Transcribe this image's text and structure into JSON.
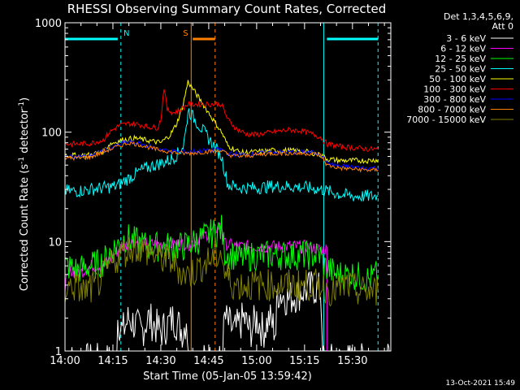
{
  "chart_data": {
    "type": "line",
    "title": "RHESSI Observing Summary Count Rates, Corrected",
    "xlabel": "Start Time (05-Jan-05 13:59:42)",
    "ylabel": "Corrected Count Rate (s⁻¹ detector⁻¹)",
    "ylabel_parts": [
      "Corrected Count Rate (s",
      "-1",
      " detector",
      "-1",
      ")"
    ],
    "y_scale": "log",
    "ylim": [
      1,
      1000
    ],
    "y_ticks": [
      {
        "v": 1,
        "label": "1"
      },
      {
        "v": 10,
        "label": "10"
      },
      {
        "v": 100,
        "label": "100"
      },
      {
        "v": 1000,
        "label": "1000"
      }
    ],
    "x_ticks": [
      "14:00",
      "14:15",
      "14:30",
      "14:45",
      "15:00",
      "15:15",
      "15:30"
    ],
    "x_tick_minutes": [
      0,
      15,
      30,
      45,
      60,
      75,
      90
    ],
    "x_range_minutes": [
      0,
      102
    ],
    "legend": {
      "header": [
        "Det 1,3,4,5,6,9,",
        "Att 0"
      ],
      "placement": "top-right outside"
    },
    "footer_date": "13-Oct-2021 15:49",
    "markers": [
      {
        "label": "N",
        "color": "#00ffff",
        "bar": [
          0,
          16.5
        ],
        "bar2": [
          82,
          98
        ],
        "lines": [
          0,
          17.5,
          81,
          98
        ]
      },
      {
        "label": "S",
        "color": "#ff8000",
        "bar": [
          40,
          47
        ],
        "lines": [
          39.5,
          47
        ]
      }
    ],
    "series": [
      {
        "name": "3 - 6 keV",
        "color": "#ffffff",
        "points": [
          [
            0,
            0.8
          ],
          [
            16,
            0.8
          ],
          [
            16.5,
            2
          ],
          [
            18,
            1.5
          ],
          [
            20,
            2
          ],
          [
            24,
            1.5
          ],
          [
            26,
            2
          ],
          [
            30,
            1.5
          ],
          [
            34,
            2
          ],
          [
            37,
            1.5
          ],
          [
            38,
            2
          ],
          [
            39,
            0.8
          ],
          [
            49,
            0.8
          ],
          [
            50,
            2
          ],
          [
            53,
            1.5
          ],
          [
            56,
            2
          ],
          [
            58,
            1.5
          ],
          [
            60,
            2
          ],
          [
            62,
            1.5
          ],
          [
            64,
            2
          ],
          [
            66,
            1.5
          ],
          [
            66.5,
            3.5
          ],
          [
            70,
            3
          ],
          [
            74,
            3.5
          ],
          [
            78,
            3.8
          ],
          [
            80,
            3.5
          ],
          [
            81,
            0.8
          ],
          [
            102,
            0.8
          ]
        ]
      },
      {
        "name": "6 - 12 keV",
        "color": "#ff00ff",
        "points": [
          [
            0,
            4
          ],
          [
            2,
            5.5
          ],
          [
            4,
            5
          ],
          [
            8,
            6
          ],
          [
            12,
            6
          ],
          [
            14,
            7
          ],
          [
            16,
            8
          ],
          [
            18,
            9
          ],
          [
            22,
            10
          ],
          [
            26,
            9.5
          ],
          [
            30,
            9.5
          ],
          [
            36,
            9.5
          ],
          [
            39,
            9.5
          ],
          [
            49,
            14
          ],
          [
            50,
            9.5
          ],
          [
            55,
            9
          ],
          [
            62,
            9
          ],
          [
            70,
            9
          ],
          [
            76,
            9
          ],
          [
            80,
            8.5
          ],
          [
            82,
            8.5
          ],
          [
            82,
            0.8
          ],
          [
            102,
            0.8
          ]
        ]
      },
      {
        "name": "12 - 25 keV",
        "color": "#00ff00",
        "points": [
          [
            0,
            6
          ],
          [
            4,
            5.5
          ],
          [
            8,
            6
          ],
          [
            12,
            6.5
          ],
          [
            14,
            8
          ],
          [
            16,
            9
          ],
          [
            19,
            11
          ],
          [
            22,
            10
          ],
          [
            26,
            9
          ],
          [
            30,
            9
          ],
          [
            34,
            9
          ],
          [
            37,
            9
          ],
          [
            39,
            9.5
          ],
          [
            49,
            13
          ],
          [
            50,
            8
          ],
          [
            55,
            7
          ],
          [
            60,
            7.5
          ],
          [
            70,
            7.5
          ],
          [
            76,
            7.5
          ],
          [
            80,
            7.5
          ],
          [
            81,
            6
          ],
          [
            85,
            5
          ],
          [
            90,
            5
          ],
          [
            95,
            4.5
          ],
          [
            98,
            5
          ]
        ]
      },
      {
        "name": "25 - 50 keV",
        "color": "#00ffff",
        "points": [
          [
            0,
            29
          ],
          [
            4,
            29
          ],
          [
            8,
            30
          ],
          [
            12,
            31
          ],
          [
            16,
            32
          ],
          [
            20,
            38
          ],
          [
            24,
            45
          ],
          [
            28,
            50
          ],
          [
            30,
            52
          ],
          [
            33,
            56
          ],
          [
            35,
            62
          ],
          [
            37,
            75
          ],
          [
            38,
            110
          ],
          [
            38.5,
            160
          ],
          [
            49,
            60
          ],
          [
            51,
            33
          ],
          [
            55,
            31
          ],
          [
            60,
            31
          ],
          [
            65,
            32
          ],
          [
            70,
            32
          ],
          [
            76,
            31
          ],
          [
            80,
            30
          ],
          [
            82,
            29
          ],
          [
            86,
            27
          ],
          [
            90,
            26
          ],
          [
            95,
            26
          ],
          [
            98,
            26
          ]
        ]
      },
      {
        "name": "50 - 100 keV",
        "color": "#ffff00",
        "points": [
          [
            0,
            62
          ],
          [
            4,
            61
          ],
          [
            8,
            62
          ],
          [
            12,
            67
          ],
          [
            14,
            78
          ],
          [
            18,
            85
          ],
          [
            22,
            88
          ],
          [
            26,
            84
          ],
          [
            30,
            80
          ],
          [
            33,
            95
          ],
          [
            35,
            120
          ],
          [
            37,
            180
          ],
          [
            38.5,
            290
          ],
          [
            49,
            100
          ],
          [
            51,
            75
          ],
          [
            55,
            65
          ],
          [
            60,
            66
          ],
          [
            65,
            68
          ],
          [
            70,
            68
          ],
          [
            76,
            66
          ],
          [
            80,
            62
          ],
          [
            82,
            57
          ],
          [
            86,
            55
          ],
          [
            90,
            55
          ],
          [
            95,
            55
          ],
          [
            98,
            56
          ]
        ]
      },
      {
        "name": "100 - 300 keV",
        "color": "#ff0000",
        "points": [
          [
            0,
            78
          ],
          [
            4,
            78
          ],
          [
            8,
            79
          ],
          [
            12,
            85
          ],
          [
            14,
            100
          ],
          [
            17,
            115
          ],
          [
            20,
            120
          ],
          [
            23,
            118
          ],
          [
            26,
            112
          ],
          [
            29,
            110
          ],
          [
            30,
            130
          ],
          [
            31,
            260
          ],
          [
            32,
            160
          ],
          [
            34,
            150
          ],
          [
            36,
            160
          ],
          [
            38.5,
            180
          ],
          [
            49,
            180
          ],
          [
            51,
            130
          ],
          [
            54,
            105
          ],
          [
            57,
            96
          ],
          [
            60,
            95
          ],
          [
            65,
            100
          ],
          [
            70,
            105
          ],
          [
            74,
            103
          ],
          [
            77,
            97
          ],
          [
            80,
            90
          ],
          [
            82,
            78
          ],
          [
            86,
            74
          ],
          [
            90,
            72
          ],
          [
            95,
            70
          ],
          [
            98,
            70
          ]
        ]
      },
      {
        "name": "300 - 800 keV",
        "color": "#0000ff",
        "points": [
          [
            0,
            60
          ],
          [
            4,
            60
          ],
          [
            8,
            61
          ],
          [
            12,
            68
          ],
          [
            16,
            75
          ],
          [
            20,
            82
          ],
          [
            24,
            78
          ],
          [
            28,
            72
          ],
          [
            32,
            68
          ],
          [
            36,
            66
          ],
          [
            38.5,
            66
          ],
          [
            49,
            70
          ],
          [
            51,
            64
          ],
          [
            55,
            62
          ],
          [
            60,
            64
          ],
          [
            65,
            66
          ],
          [
            70,
            66
          ],
          [
            76,
            66
          ],
          [
            80,
            64
          ],
          [
            82,
            52
          ],
          [
            86,
            49
          ],
          [
            90,
            48
          ],
          [
            95,
            47
          ],
          [
            98,
            47
          ]
        ]
      },
      {
        "name": "800 - 7000 keV",
        "color": "#ff8000",
        "points": [
          [
            0,
            58
          ],
          [
            4,
            58
          ],
          [
            8,
            59
          ],
          [
            12,
            66
          ],
          [
            16,
            73
          ],
          [
            20,
            80
          ],
          [
            24,
            76
          ],
          [
            28,
            70
          ],
          [
            32,
            67
          ],
          [
            36,
            64
          ],
          [
            38.5,
            64
          ],
          [
            49,
            68
          ],
          [
            51,
            62
          ],
          [
            55,
            60
          ],
          [
            60,
            62
          ],
          [
            65,
            64
          ],
          [
            70,
            64
          ],
          [
            76,
            64
          ],
          [
            80,
            62
          ],
          [
            82,
            50
          ],
          [
            86,
            47
          ],
          [
            90,
            46
          ],
          [
            95,
            45
          ],
          [
            98,
            45
          ]
        ]
      },
      {
        "name": "7000 - 15000 keV",
        "color": "#808000",
        "points": [
          [
            0,
            3.5
          ],
          [
            2,
            4
          ],
          [
            6,
            3.5
          ],
          [
            10,
            4
          ],
          [
            14,
            6
          ],
          [
            18,
            8
          ],
          [
            22,
            9
          ],
          [
            26,
            8
          ],
          [
            30,
            7
          ],
          [
            34,
            6.5
          ],
          [
            37,
            5
          ],
          [
            38,
            5
          ],
          [
            39,
            5
          ],
          [
            49,
            8
          ],
          [
            50,
            5
          ],
          [
            53,
            4
          ],
          [
            58,
            4
          ],
          [
            63,
            4
          ],
          [
            68,
            4
          ],
          [
            74,
            4
          ],
          [
            80,
            4
          ],
          [
            84,
            3.5
          ],
          [
            88,
            4
          ],
          [
            92,
            3.5
          ],
          [
            96,
            3.5
          ],
          [
            98,
            3.5
          ]
        ]
      }
    ]
  }
}
